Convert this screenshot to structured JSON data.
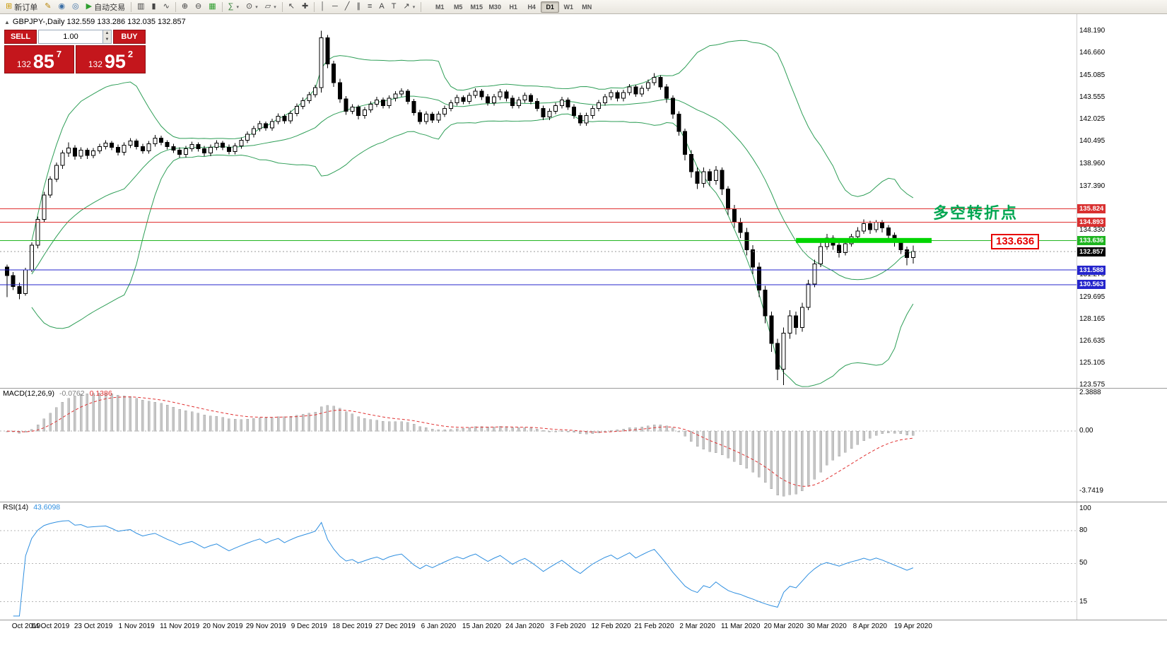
{
  "toolbar": {
    "items": [
      {
        "icon": "new-order-icon",
        "label": "新订单",
        "name": "new-order-button"
      },
      {
        "icon": "wrench-icon",
        "name": "tools-button"
      },
      {
        "icon": "user-icon",
        "name": "account-button"
      },
      {
        "icon": "broadcast-icon",
        "name": "news-button"
      },
      {
        "icon": "autotrade-icon",
        "label": "自动交易",
        "name": "auto-trading-button"
      },
      {
        "sep": true
      },
      {
        "icon": "bars-icon",
        "name": "bar-chart-button"
      },
      {
        "icon": "candles-icon",
        "name": "candlestick-chart-button"
      },
      {
        "icon": "line-icon",
        "name": "line-chart-button"
      },
      {
        "sep": true
      },
      {
        "icon": "zoom-in-icon",
        "name": "zoom-in-button"
      },
      {
        "icon": "zoom-out-icon",
        "name": "zoom-out-button"
      },
      {
        "icon": "tile-icon",
        "name": "tile-windows-button"
      },
      {
        "sep": true
      },
      {
        "icon": "indicators-icon",
        "name": "indicators-button",
        "caret": true
      },
      {
        "icon": "period-icon",
        "name": "periods-button",
        "caret": true
      },
      {
        "icon": "template-icon",
        "name": "templates-button",
        "caret": true
      },
      {
        "sep": true
      },
      {
        "icon": "cursor-icon",
        "name": "cursor-button"
      },
      {
        "icon": "crosshair-icon",
        "name": "crosshair-button"
      },
      {
        "sep": true
      },
      {
        "icon": "vline-icon",
        "name": "vertical-line-button"
      },
      {
        "icon": "hline-icon",
        "name": "horizontal-line-button"
      },
      {
        "icon": "trendline-icon",
        "name": "trendline-button"
      },
      {
        "icon": "channel-icon",
        "name": "channel-button"
      },
      {
        "icon": "fibo-icon",
        "name": "fibonacci-button"
      },
      {
        "icon": "text-icon",
        "name": "text-button"
      },
      {
        "icon": "label-icon",
        "name": "label-button"
      },
      {
        "icon": "arrows-icon",
        "name": "arrows-button",
        "caret": true
      },
      {
        "sep": true
      }
    ],
    "timeframes": [
      "M1",
      "M5",
      "M15",
      "M30",
      "H1",
      "H4",
      "D1",
      "W1",
      "MN"
    ],
    "active_timeframe": "D1"
  },
  "trade_panel": {
    "sell_label": "SELL",
    "buy_label": "BUY",
    "volume": "1.00",
    "sell_price": {
      "prefix": "132",
      "main": "85",
      "pip": "7"
    },
    "buy_price": {
      "prefix": "132",
      "main": "95",
      "pip": "2"
    }
  },
  "chart_info": {
    "symbol_ohlc": "GBPJPY-,Daily  132.559 133.286 132.035 132.857"
  },
  "annotations": {
    "turning_point": "多空转折点",
    "price_callout": "133.636"
  },
  "chart_data": {
    "type": "candlestick",
    "symbol": "GBPJPY-",
    "timeframe": "Daily",
    "ohlc_display": {
      "open": "132.559",
      "high": "133.286",
      "low": "132.035",
      "close": "132.857"
    },
    "price_ticks": [
      "148.190",
      "146.660",
      "145.085",
      "143.555",
      "142.025",
      "140.495",
      "138.960",
      "137.390",
      "134.330",
      "131.270",
      "129.695",
      "128.165",
      "126.635",
      "125.105",
      "123.575"
    ],
    "price_tags": [
      {
        "label": "135.824",
        "value": 135.824,
        "bg": "#d93030"
      },
      {
        "label": "134.893",
        "value": 134.893,
        "bg": "#d93030"
      },
      {
        "label": "133.636",
        "value": 133.636,
        "bg": "#1fb520"
      },
      {
        "label": "131.588",
        "value": 131.588,
        "bg": "#2525cc"
      },
      {
        "label": "130.563",
        "value": 130.563,
        "bg": "#2525cc"
      }
    ],
    "bid": {
      "value": 132.857,
      "label": "132.857"
    },
    "hlines": [
      {
        "value": 135.824,
        "color": "#e03030"
      },
      {
        "value": 134.893,
        "color": "#e03030"
      },
      {
        "value": 133.636,
        "color": "#22b520"
      },
      {
        "value": 131.588,
        "color": "#2525cc"
      },
      {
        "value": 130.563,
        "color": "#2525cc"
      }
    ],
    "highlight_segment": {
      "value": 133.636,
      "from_index": 128,
      "to_index": 150,
      "color": "#00d500"
    },
    "date_labels": [
      "Oct 2019",
      "14 Oct 2019",
      "23 Oct 2019",
      "1 Nov 2019",
      "11 Nov 2019",
      "20 Nov 2019",
      "29 Nov 2019",
      "9 Dec 2019",
      "18 Dec 2019",
      "27 Dec 2019",
      "6 Jan 2020",
      "15 Jan 2020",
      "24 Jan 2020",
      "3 Feb 2020",
      "12 Feb 2020",
      "21 Feb 2020",
      "2 Mar 2020",
      "11 Mar 2020",
      "20 Mar 2020",
      "30 Mar 2020",
      "8 Apr 2020",
      "19 Apr 2020"
    ],
    "candles": [
      [
        131.8,
        131.95,
        129.7,
        131.2
      ],
      [
        131.2,
        131.45,
        130.2,
        130.45
      ],
      [
        130.45,
        130.7,
        129.55,
        129.95
      ],
      [
        129.95,
        131.75,
        129.8,
        131.6
      ],
      [
        131.6,
        133.5,
        131.45,
        133.3
      ],
      [
        133.3,
        135.3,
        133.1,
        135.1
      ],
      [
        135.1,
        137.0,
        134.9,
        136.8
      ],
      [
        136.8,
        138.1,
        136.6,
        137.9
      ],
      [
        137.9,
        139.05,
        137.7,
        138.85
      ],
      [
        138.85,
        139.9,
        138.6,
        139.7
      ],
      [
        139.7,
        140.45,
        139.45,
        140.05
      ],
      [
        140.05,
        140.25,
        139.25,
        139.5
      ],
      [
        139.5,
        140.1,
        139.3,
        139.9
      ],
      [
        139.9,
        140.05,
        139.3,
        139.55
      ],
      [
        139.55,
        140.05,
        139.35,
        139.85
      ],
      [
        139.85,
        140.35,
        139.65,
        140.15
      ],
      [
        140.15,
        140.6,
        139.95,
        140.4
      ],
      [
        140.4,
        140.55,
        139.9,
        140.1
      ],
      [
        140.1,
        140.3,
        139.55,
        139.75
      ],
      [
        139.75,
        140.45,
        139.55,
        140.25
      ],
      [
        140.25,
        140.75,
        140.05,
        140.55
      ],
      [
        140.55,
        140.7,
        139.95,
        140.15
      ],
      [
        140.15,
        140.35,
        139.65,
        139.85
      ],
      [
        139.85,
        140.55,
        139.65,
        140.35
      ],
      [
        140.35,
        140.95,
        140.15,
        140.75
      ],
      [
        140.75,
        140.9,
        140.25,
        140.45
      ],
      [
        140.45,
        140.6,
        139.95,
        140.15
      ],
      [
        140.15,
        140.35,
        139.7,
        139.9
      ],
      [
        139.9,
        140.1,
        139.4,
        139.6
      ],
      [
        139.6,
        140.2,
        139.4,
        140.0
      ],
      [
        140.0,
        140.5,
        139.8,
        140.3
      ],
      [
        140.3,
        140.45,
        139.8,
        140.0
      ],
      [
        140.0,
        140.2,
        139.5,
        139.7
      ],
      [
        139.7,
        140.3,
        139.5,
        140.1
      ],
      [
        140.1,
        140.6,
        139.9,
        140.4
      ],
      [
        140.4,
        140.55,
        139.9,
        140.1
      ],
      [
        140.1,
        140.3,
        139.6,
        139.8
      ],
      [
        139.8,
        140.4,
        139.6,
        140.2
      ],
      [
        140.2,
        140.8,
        140.0,
        140.6
      ],
      [
        140.6,
        141.2,
        140.4,
        141.0
      ],
      [
        141.0,
        141.6,
        140.8,
        141.4
      ],
      [
        141.4,
        141.95,
        141.2,
        141.75
      ],
      [
        141.75,
        141.9,
        141.25,
        141.45
      ],
      [
        141.45,
        142.1,
        141.25,
        141.9
      ],
      [
        141.9,
        142.45,
        141.7,
        142.25
      ],
      [
        142.25,
        142.4,
        141.75,
        141.95
      ],
      [
        141.95,
        142.65,
        141.75,
        142.45
      ],
      [
        142.45,
        143.15,
        142.25,
        142.95
      ],
      [
        142.95,
        143.55,
        142.75,
        143.35
      ],
      [
        143.35,
        143.95,
        143.15,
        143.75
      ],
      [
        143.75,
        144.45,
        143.55,
        144.25
      ],
      [
        144.25,
        148.19,
        143.9,
        147.7
      ],
      [
        147.7,
        147.9,
        145.6,
        145.9
      ],
      [
        145.9,
        146.1,
        144.3,
        144.6
      ],
      [
        144.6,
        144.85,
        143.2,
        143.45
      ],
      [
        143.45,
        143.65,
        142.35,
        142.6
      ],
      [
        142.6,
        143.1,
        142.4,
        142.9
      ],
      [
        142.9,
        143.05,
        142.05,
        142.3
      ],
      [
        142.3,
        142.9,
        142.1,
        142.7
      ],
      [
        142.7,
        143.3,
        142.5,
        143.1
      ],
      [
        143.1,
        143.6,
        142.9,
        143.4
      ],
      [
        143.4,
        143.55,
        142.8,
        143.0
      ],
      [
        143.0,
        143.7,
        142.8,
        143.5
      ],
      [
        143.5,
        144.0,
        143.3,
        143.8
      ],
      [
        143.8,
        144.2,
        143.6,
        144.0
      ],
      [
        144.0,
        144.15,
        143.1,
        143.3
      ],
      [
        143.3,
        143.45,
        142.3,
        142.5
      ],
      [
        142.5,
        142.7,
        141.7,
        141.9
      ],
      [
        141.9,
        142.6,
        141.7,
        142.4
      ],
      [
        142.4,
        142.55,
        141.8,
        142.0
      ],
      [
        142.0,
        142.6,
        141.8,
        142.4
      ],
      [
        142.4,
        143.0,
        142.2,
        142.8
      ],
      [
        142.8,
        143.4,
        142.6,
        143.2
      ],
      [
        143.2,
        143.75,
        143.0,
        143.55
      ],
      [
        143.55,
        143.7,
        143.1,
        143.3
      ],
      [
        143.3,
        143.9,
        143.1,
        143.7
      ],
      [
        143.7,
        144.2,
        143.5,
        144.0
      ],
      [
        144.0,
        144.15,
        143.4,
        143.6
      ],
      [
        143.6,
        143.8,
        143.0,
        143.2
      ],
      [
        143.2,
        143.8,
        143.0,
        143.6
      ],
      [
        143.6,
        144.15,
        143.4,
        143.95
      ],
      [
        143.95,
        144.1,
        143.3,
        143.5
      ],
      [
        143.5,
        143.7,
        142.8,
        143.0
      ],
      [
        143.0,
        143.6,
        142.8,
        143.4
      ],
      [
        143.4,
        143.9,
        143.2,
        143.7
      ],
      [
        143.7,
        143.85,
        143.1,
        143.3
      ],
      [
        143.3,
        143.5,
        142.6,
        142.8
      ],
      [
        142.8,
        143.0,
        142.0,
        142.2
      ],
      [
        142.2,
        142.8,
        142.0,
        142.6
      ],
      [
        142.6,
        143.2,
        142.4,
        143.0
      ],
      [
        143.0,
        143.6,
        142.8,
        143.4
      ],
      [
        143.4,
        143.55,
        142.7,
        142.9
      ],
      [
        142.9,
        143.1,
        142.1,
        142.3
      ],
      [
        142.3,
        142.5,
        141.6,
        141.8
      ],
      [
        141.8,
        142.5,
        141.6,
        142.3
      ],
      [
        142.3,
        143.0,
        142.1,
        142.8
      ],
      [
        142.8,
        143.4,
        142.6,
        143.2
      ],
      [
        143.2,
        143.8,
        143.0,
        143.6
      ],
      [
        143.6,
        144.1,
        143.4,
        143.9
      ],
      [
        143.9,
        144.05,
        143.3,
        143.5
      ],
      [
        143.5,
        144.1,
        143.3,
        143.9
      ],
      [
        143.9,
        144.5,
        143.7,
        144.3
      ],
      [
        144.3,
        144.45,
        143.6,
        143.8
      ],
      [
        143.8,
        144.4,
        143.6,
        144.2
      ],
      [
        144.2,
        144.8,
        144.0,
        144.6
      ],
      [
        144.6,
        145.25,
        144.4,
        144.95
      ],
      [
        144.95,
        145.1,
        144.1,
        144.3
      ],
      [
        144.3,
        144.5,
        143.2,
        143.5
      ],
      [
        143.5,
        143.7,
        142.1,
        142.4
      ],
      [
        142.4,
        142.6,
        140.9,
        141.2
      ],
      [
        141.2,
        141.4,
        139.2,
        139.6
      ],
      [
        139.6,
        139.9,
        138.0,
        138.4
      ],
      [
        138.4,
        138.7,
        137.2,
        137.6
      ],
      [
        137.6,
        138.7,
        137.3,
        138.4
      ],
      [
        138.4,
        138.6,
        137.4,
        137.8
      ],
      [
        137.8,
        138.8,
        137.5,
        138.5
      ],
      [
        138.5,
        138.7,
        136.8,
        137.2
      ],
      [
        137.2,
        137.4,
        135.4,
        135.8
      ],
      [
        135.8,
        136.1,
        134.5,
        134.9
      ],
      [
        134.9,
        135.2,
        133.8,
        134.2
      ],
      [
        134.2,
        134.5,
        132.6,
        133.0
      ],
      [
        133.0,
        133.3,
        131.3,
        131.8
      ],
      [
        131.8,
        132.1,
        129.7,
        130.2
      ],
      [
        130.2,
        130.5,
        127.9,
        128.4
      ],
      [
        128.4,
        128.7,
        125.9,
        126.5
      ],
      [
        126.5,
        126.8,
        123.95,
        124.7
      ],
      [
        124.7,
        127.6,
        123.6,
        127.2
      ],
      [
        127.2,
        128.8,
        126.8,
        128.4
      ],
      [
        128.4,
        128.7,
        127.1,
        127.6
      ],
      [
        127.6,
        129.3,
        127.3,
        129.0
      ],
      [
        129.0,
        130.9,
        128.8,
        130.6
      ],
      [
        130.6,
        132.3,
        130.4,
        132.0
      ],
      [
        132.0,
        133.5,
        131.8,
        133.2
      ],
      [
        133.2,
        134.1,
        133.0,
        133.8
      ],
      [
        133.8,
        134.0,
        133.0,
        133.3
      ],
      [
        133.3,
        133.55,
        132.45,
        132.8
      ],
      [
        132.8,
        133.6,
        132.6,
        133.4
      ],
      [
        133.4,
        134.1,
        133.2,
        133.9
      ],
      [
        133.9,
        134.55,
        133.7,
        134.3
      ],
      [
        134.3,
        135.1,
        134.1,
        134.8
      ],
      [
        134.8,
        135.0,
        134.1,
        134.4
      ],
      [
        134.4,
        135.05,
        134.2,
        134.9
      ],
      [
        134.9,
        135.05,
        134.2,
        134.5
      ],
      [
        134.5,
        134.7,
        133.7,
        134.0
      ],
      [
        134.0,
        134.2,
        133.2,
        133.5
      ],
      [
        133.5,
        133.7,
        132.7,
        133.0
      ],
      [
        133.0,
        133.2,
        131.9,
        132.45
      ],
      [
        132.45,
        133.29,
        132.04,
        132.86
      ]
    ],
    "indicators": {
      "bollinger": {
        "period": 20,
        "deviation": 2,
        "color": "#2e9e57"
      },
      "macd": {
        "name": "MACD(12,26,9)",
        "main_value": "-0.0762",
        "signal_value": "0.1386",
        "fast": 12,
        "slow": 26,
        "signal": 9,
        "ticks": [
          "2.3888",
          "0.00",
          "-3.7419"
        ],
        "bar_color": "#c6c6c6",
        "signal_color": "#e03131"
      },
      "rsi": {
        "name": "RSI(14)",
        "value": "43.6098",
        "period": 14,
        "ticks": [
          "100",
          "80",
          "50",
          "15"
        ],
        "levels": [
          80,
          50,
          15
        ],
        "color": "#2f8fe0"
      }
    }
  }
}
